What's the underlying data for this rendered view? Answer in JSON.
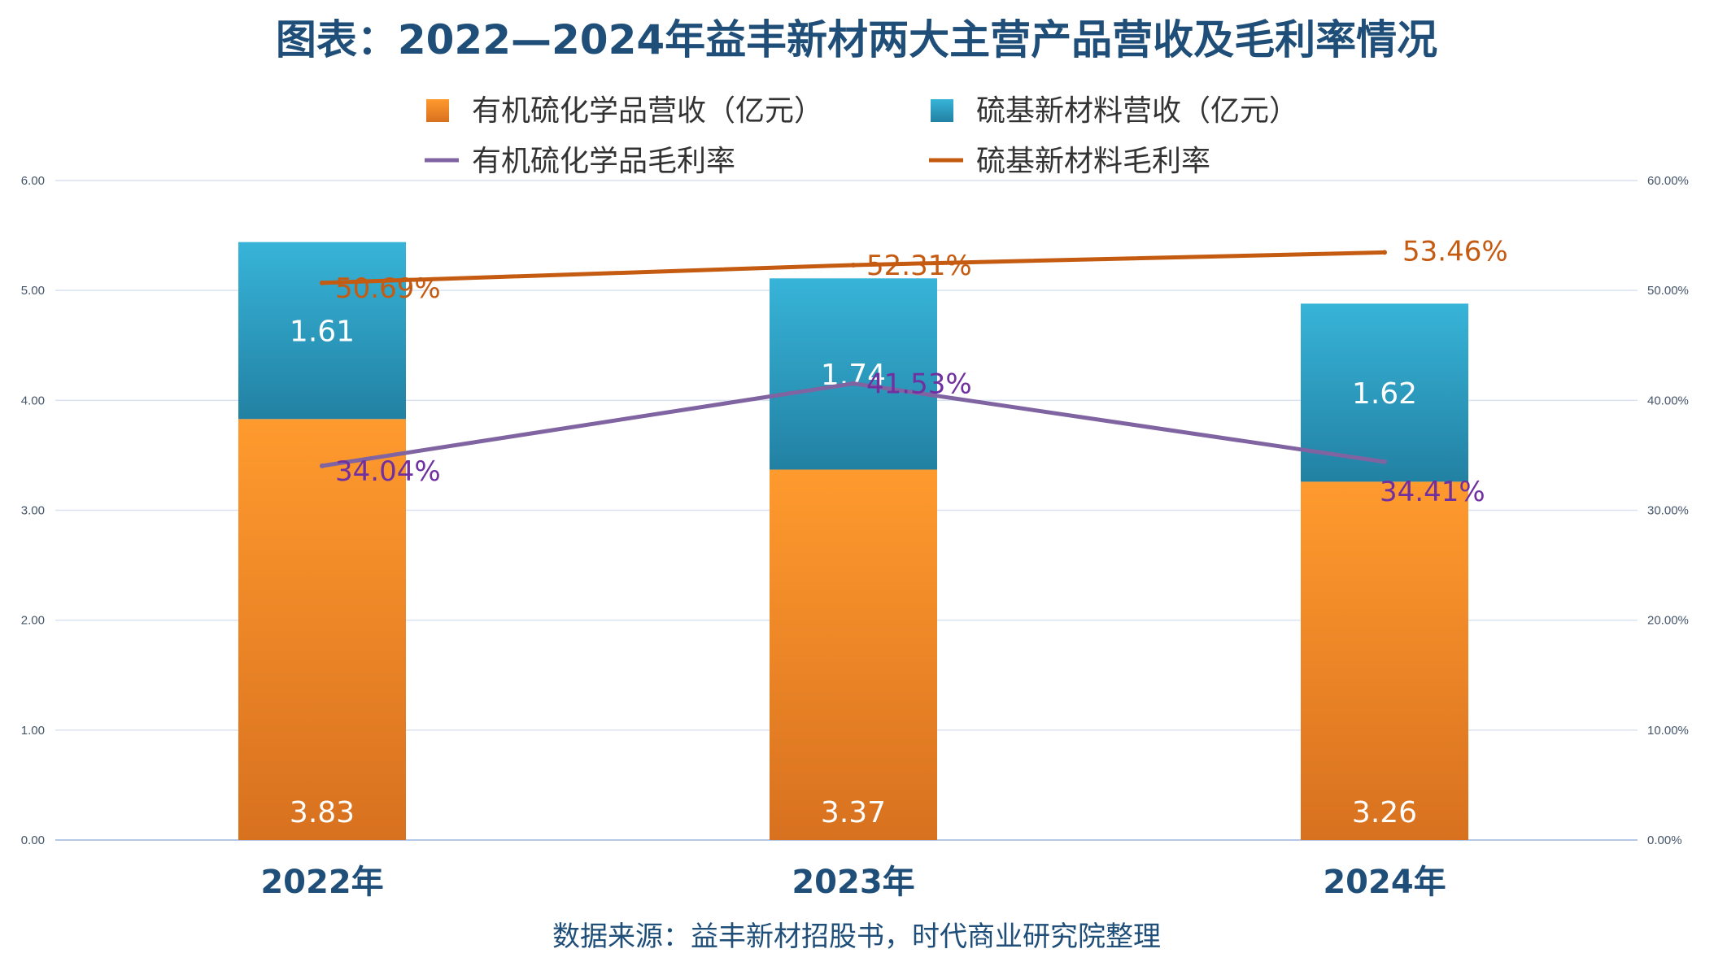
{
  "chart_data": {
    "type": "bar",
    "stacked": true,
    "title": "图表：2022—2024年益丰新材两大主营产品营收及毛利率情况",
    "categories": [
      "2022年",
      "2023年",
      "2024年"
    ],
    "series": [
      {
        "name": "有机硫化学品营收（亿元）",
        "kind": "bar",
        "axis": "left",
        "color": "#f28c28",
        "values": [
          3.83,
          3.37,
          3.26
        ]
      },
      {
        "name": "硫基新材料营收（亿元）",
        "kind": "bar",
        "axis": "left",
        "color": "#2ea3c9",
        "values": [
          1.61,
          1.74,
          1.62
        ]
      },
      {
        "name": "有机硫化学品毛利率",
        "kind": "line",
        "axis": "right",
        "color": "#8064a2",
        "label_color": "#7030a0",
        "values": [
          34.04,
          41.53,
          34.41
        ],
        "labels": [
          "34.04%",
          "41.53%",
          "34.41%"
        ]
      },
      {
        "name": "硫基新材料毛利率",
        "kind": "line",
        "axis": "right",
        "color": "#c55a11",
        "label_color": "#c55a11",
        "values": [
          50.69,
          52.31,
          53.46
        ],
        "labels": [
          "50.69%",
          "52.31%",
          "53.46%"
        ]
      }
    ],
    "y_left": {
      "min": 0,
      "max": 6,
      "ticks": [
        "0.00",
        "1.00",
        "2.00",
        "3.00",
        "4.00",
        "5.00",
        "6.00"
      ]
    },
    "y_right": {
      "min": 0,
      "max": 60,
      "ticks": [
        "0.00%",
        "10.00%",
        "20.00%",
        "30.00%",
        "40.00%",
        "50.00%",
        "60.00%"
      ]
    },
    "grid": true,
    "legend": "top",
    "source": "数据来源：益丰新材招股书，时代商业研究院整理"
  }
}
